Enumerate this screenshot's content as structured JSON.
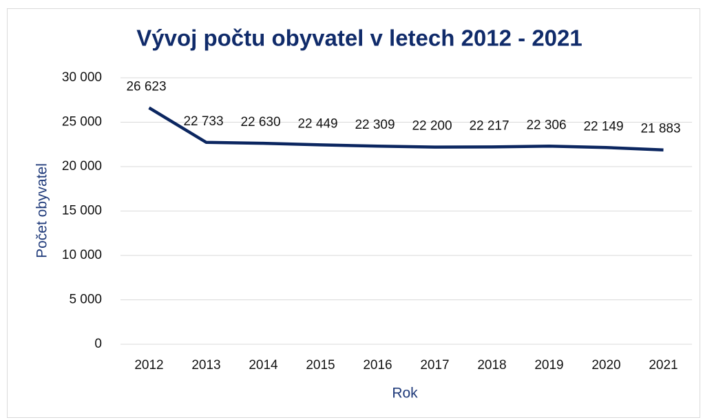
{
  "chart_data": {
    "type": "line",
    "title": "Vývoj počtu obyvatel v letech 2012 - 2021",
    "x_label": "Rok",
    "y_label": "Počet obyvatel",
    "categories": [
      "2012",
      "2013",
      "2014",
      "2015",
      "2016",
      "2017",
      "2018",
      "2019",
      "2020",
      "2021"
    ],
    "series": [
      {
        "name": "Počet obyvatel",
        "color": "#0b2660",
        "values": [
          26623,
          22733,
          22630,
          22449,
          22309,
          22200,
          22217,
          22306,
          22149,
          21883
        ],
        "value_labels": [
          "26 623",
          "22 733",
          "22 630",
          "22 449",
          "22 309",
          "22 200",
          "22 217",
          "22 306",
          "22 149",
          "21 883"
        ]
      }
    ],
    "ylim": [
      0,
      30000
    ],
    "yticks": [
      0,
      {
        "value": 5000,
        "label": "5 000"
      },
      {
        "value": 10000,
        "label": "10 000"
      },
      {
        "value": 15000,
        "label": "15 000"
      },
      {
        "value": 20000,
        "label": "20 000"
      },
      {
        "value": 25000,
        "label": "25 000"
      },
      {
        "value": 30000,
        "label": "30 000"
      }
    ],
    "grid": true
  }
}
